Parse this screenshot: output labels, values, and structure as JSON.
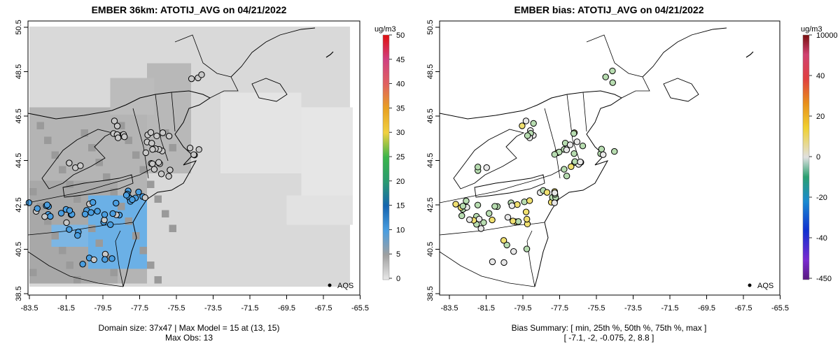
{
  "left_panel": {
    "title": "EMBER 36km: ATOTIJ_AVG on 04/21/2022",
    "footer_line1": "Domain size: 37x47 | Max Model = 15 at (13, 15)",
    "footer_line2": "Max Obs: 13",
    "legend_unit": "ug/m3",
    "legend_ticks": [
      "0",
      "5",
      "10",
      "15",
      "20",
      "25",
      "30",
      "35",
      "40",
      "45",
      "50"
    ],
    "aqs_label": "AQS"
  },
  "right_panel": {
    "title": "EMBER bias: ATOTIJ_AVG on 04/21/2022",
    "footer_line1": "Bias Summary: [ min, 25th %, 50th %, 75th %, max ]",
    "footer_line2": "[ -7.1,   -2,   -0.075,   2,   8.8 ]",
    "legend_unit": "ug/m3",
    "legend_ticks": [
      "-450",
      "-40",
      "-20",
      "0",
      "20",
      "40",
      "10000"
    ],
    "aqs_label": "AQS"
  },
  "map_axes": {
    "x_ticks": [
      "-83.5",
      "-81.5",
      "-79.5",
      "-77.5",
      "-75.5",
      "-73.5",
      "-71.5",
      "-69.5",
      "-67.5",
      "-65.5"
    ],
    "y_ticks": [
      "38.5",
      "40.5",
      "42.5",
      "44.5",
      "46.5",
      "48.5",
      "50.5"
    ]
  },
  "colors": {
    "model_grid_base": "#d9d9d9",
    "model_grid_blue": "#5aa8e0",
    "station_gray": "#c8c8c8",
    "station_blue": "#4a9ee0",
    "bias_green": "#b7dcb0",
    "bias_yellow": "#f0e070"
  }
}
